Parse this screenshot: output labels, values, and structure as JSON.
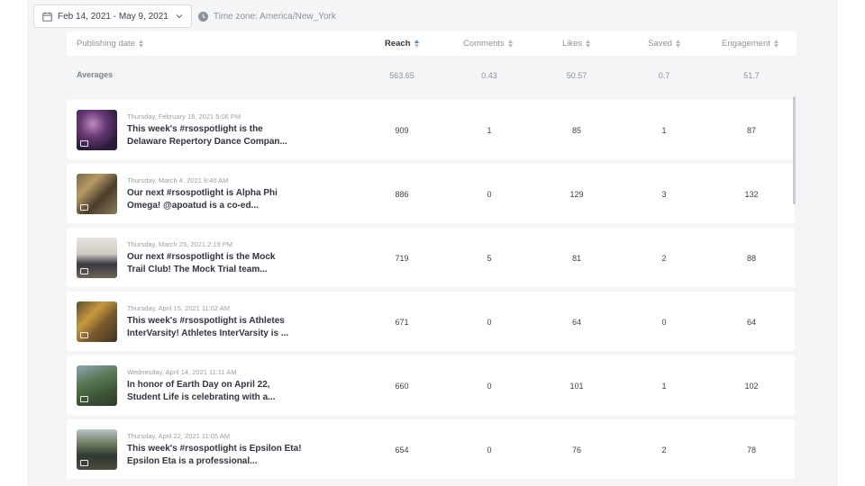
{
  "toolbar": {
    "date_range": "Feb 14, 2021 - May 9, 2021",
    "timezone": "Time zone: America/New_York"
  },
  "columns": {
    "publishing_date": "Publishing date",
    "reach": "Reach",
    "comments": "Comments",
    "likes": "Likes",
    "saved": "Saved",
    "engagement": "Engagement"
  },
  "averages": {
    "label": "Averages",
    "reach": "563.65",
    "comments": "0.43",
    "likes": "50.57",
    "saved": "0.7",
    "engagement": "51.7"
  },
  "posts": [
    {
      "date": "Thursday, February 18, 2021 5:06 PM",
      "caption_1": "This week's #rsospotlight is the",
      "caption_2": "Delaware Repertory Dance Compan...",
      "reach": "909",
      "comments": "1",
      "likes": "85",
      "saved": "1",
      "engagement": "87"
    },
    {
      "date": "Thursday, March 4, 2021 9:40 AM",
      "caption_1": "Our next #rsospotlight is Alpha Phi",
      "caption_2": "Omega! @apoatud is a co-ed...",
      "reach": "886",
      "comments": "0",
      "likes": "129",
      "saved": "3",
      "engagement": "132"
    },
    {
      "date": "Thursday, March 25, 2021 2:19 PM",
      "caption_1": "Our next #rsospotlight is the Mock",
      "caption_2": "Trail Club! The Mock Trial team...",
      "reach": "719",
      "comments": "5",
      "likes": "81",
      "saved": "2",
      "engagement": "88"
    },
    {
      "date": "Thursday, April 15, 2021 11:02 AM",
      "caption_1": "This week's #rsospotlight is Athletes",
      "caption_2": "InterVarsity! Athletes InterVarsity is ...",
      "reach": "671",
      "comments": "0",
      "likes": "64",
      "saved": "0",
      "engagement": "64"
    },
    {
      "date": "Wednesday, April 14, 2021 11:11 AM",
      "caption_1": "In honor of Earth Day on April 22,",
      "caption_2": "Student Life is celebrating with a...",
      "reach": "660",
      "comments": "0",
      "likes": "101",
      "saved": "1",
      "engagement": "102"
    },
    {
      "date": "Thursday, April 22, 2021 11:05 AM",
      "caption_1": "This week's #rsospotlight is Epsilon Eta!",
      "caption_2": "Epsilon Eta is a professional...",
      "reach": "654",
      "comments": "0",
      "likes": "76",
      "saved": "2",
      "engagement": "78"
    }
  ],
  "icons": {
    "calendar": "calendar-icon",
    "chevron": "chevron-down-icon",
    "clock": "clock-icon",
    "sort": "sort-icon",
    "camera": "camera-icon"
  },
  "colors": {
    "panel_bg": "#f4f5f7",
    "row_bg": "#ffffff",
    "active_sort": "#3b8fe0",
    "text_dark": "#2f3440",
    "text_muted": "#8c919c"
  }
}
